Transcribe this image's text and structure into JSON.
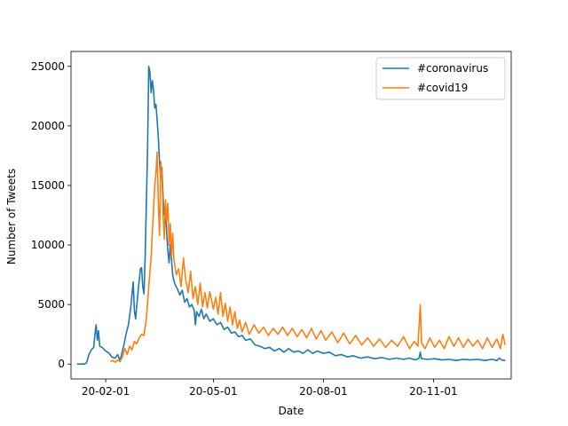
{
  "chart_data": {
    "type": "line",
    "title": "",
    "xlabel": "Date",
    "ylabel": "Number of Tweets",
    "x_tick_labels": [
      "20-02-01",
      "20-05-01",
      "20-08-01",
      "20-11-01"
    ],
    "x_ticks": [
      "2020-02-01",
      "2020-05-01",
      "2020-08-01",
      "2020-11-01"
    ],
    "y_ticks": [
      0,
      5000,
      10000,
      15000,
      20000,
      25000
    ],
    "xlim": [
      "2020-01-03",
      "2021-01-05"
    ],
    "ylim": [
      -1250,
      26250
    ],
    "grid": false,
    "legend_position": "upper right",
    "series": [
      {
        "name": "#coronavirus",
        "color": "#1f77b4",
        "points": [
          [
            "2020-01-08",
            0
          ],
          [
            "2020-01-14",
            0
          ],
          [
            "2020-01-16",
            100
          ],
          [
            "2020-01-18",
            800
          ],
          [
            "2020-01-20",
            1200
          ],
          [
            "2020-01-22",
            1400
          ],
          [
            "2020-01-23",
            2500
          ],
          [
            "2020-01-24",
            3300
          ],
          [
            "2020-01-25",
            2000
          ],
          [
            "2020-01-26",
            2800
          ],
          [
            "2020-01-27",
            1500
          ],
          [
            "2020-01-29",
            1400
          ],
          [
            "2020-02-01",
            1100
          ],
          [
            "2020-02-04",
            900
          ],
          [
            "2020-02-06",
            600
          ],
          [
            "2020-02-09",
            500
          ],
          [
            "2020-02-11",
            800
          ],
          [
            "2020-02-13",
            300
          ],
          [
            "2020-02-16",
            1500
          ],
          [
            "2020-02-18",
            2500
          ],
          [
            "2020-02-20",
            3300
          ],
          [
            "2020-02-22",
            4800
          ],
          [
            "2020-02-24",
            6900
          ],
          [
            "2020-02-25",
            4500
          ],
          [
            "2020-02-26",
            3800
          ],
          [
            "2020-02-28",
            6000
          ],
          [
            "2020-03-01",
            8000
          ],
          [
            "2020-03-02",
            8100
          ],
          [
            "2020-03-03",
            6500
          ],
          [
            "2020-03-04",
            5900
          ],
          [
            "2020-03-05",
            9000
          ],
          [
            "2020-03-06",
            13500
          ],
          [
            "2020-03-07",
            18000
          ],
          [
            "2020-03-08",
            25000
          ],
          [
            "2020-03-09",
            24500
          ],
          [
            "2020-03-10",
            22800
          ],
          [
            "2020-03-11",
            23800
          ],
          [
            "2020-03-12",
            23000
          ],
          [
            "2020-03-13",
            21500
          ],
          [
            "2020-03-14",
            21800
          ],
          [
            "2020-03-15",
            20500
          ],
          [
            "2020-03-16",
            19000
          ],
          [
            "2020-03-17",
            17000
          ],
          [
            "2020-03-18",
            15500
          ],
          [
            "2020-03-19",
            16500
          ],
          [
            "2020-03-20",
            14000
          ],
          [
            "2020-03-21",
            12500
          ],
          [
            "2020-03-22",
            13000
          ],
          [
            "2020-03-23",
            11000
          ],
          [
            "2020-03-24",
            9500
          ],
          [
            "2020-03-25",
            8500
          ],
          [
            "2020-03-26",
            10000
          ],
          [
            "2020-03-27",
            8800
          ],
          [
            "2020-03-28",
            7500
          ],
          [
            "2020-03-29",
            7000
          ],
          [
            "2020-03-30",
            6700
          ],
          [
            "2020-04-01",
            6300
          ],
          [
            "2020-04-03",
            5800
          ],
          [
            "2020-04-05",
            6200
          ],
          [
            "2020-04-07",
            5200
          ],
          [
            "2020-04-09",
            5500
          ],
          [
            "2020-04-11",
            4800
          ],
          [
            "2020-04-13",
            5000
          ],
          [
            "2020-04-15",
            4500
          ],
          [
            "2020-04-16",
            3300
          ],
          [
            "2020-04-17",
            4400
          ],
          [
            "2020-04-19",
            4000
          ],
          [
            "2020-04-21",
            4600
          ],
          [
            "2020-04-23",
            3800
          ],
          [
            "2020-04-25",
            4200
          ],
          [
            "2020-04-28",
            3600
          ],
          [
            "2020-05-01",
            3800
          ],
          [
            "2020-05-04",
            3300
          ],
          [
            "2020-05-07",
            3500
          ],
          [
            "2020-05-10",
            2900
          ],
          [
            "2020-05-13",
            3100
          ],
          [
            "2020-05-16",
            2600
          ],
          [
            "2020-05-19",
            2700
          ],
          [
            "2020-05-22",
            2300
          ],
          [
            "2020-05-25",
            2400
          ],
          [
            "2020-05-28",
            2000
          ],
          [
            "2020-06-01",
            2100
          ],
          [
            "2020-06-05",
            1600
          ],
          [
            "2020-06-09",
            1500
          ],
          [
            "2020-06-13",
            1300
          ],
          [
            "2020-06-17",
            1400
          ],
          [
            "2020-06-21",
            1100
          ],
          [
            "2020-06-25",
            1300
          ],
          [
            "2020-06-29",
            1000
          ],
          [
            "2020-07-03",
            1300
          ],
          [
            "2020-07-07",
            1000
          ],
          [
            "2020-07-11",
            1100
          ],
          [
            "2020-07-15",
            900
          ],
          [
            "2020-07-19",
            1200
          ],
          [
            "2020-07-23",
            900
          ],
          [
            "2020-07-27",
            1100
          ],
          [
            "2020-08-01",
            900
          ],
          [
            "2020-08-06",
            1000
          ],
          [
            "2020-08-11",
            700
          ],
          [
            "2020-08-16",
            800
          ],
          [
            "2020-08-21",
            600
          ],
          [
            "2020-08-26",
            700
          ],
          [
            "2020-09-01",
            500
          ],
          [
            "2020-09-07",
            600
          ],
          [
            "2020-09-13",
            450
          ],
          [
            "2020-09-19",
            550
          ],
          [
            "2020-09-25",
            400
          ],
          [
            "2020-10-01",
            500
          ],
          [
            "2020-10-07",
            400
          ],
          [
            "2020-10-12",
            500
          ],
          [
            "2020-10-17",
            350
          ],
          [
            "2020-10-20",
            500
          ],
          [
            "2020-10-21",
            1000
          ],
          [
            "2020-10-22",
            450
          ],
          [
            "2020-10-27",
            400
          ],
          [
            "2020-11-02",
            450
          ],
          [
            "2020-11-08",
            350
          ],
          [
            "2020-11-14",
            400
          ],
          [
            "2020-11-20",
            300
          ],
          [
            "2020-11-26",
            400
          ],
          [
            "2020-12-02",
            350
          ],
          [
            "2020-12-08",
            400
          ],
          [
            "2020-12-14",
            300
          ],
          [
            "2020-12-20",
            400
          ],
          [
            "2020-12-24",
            300
          ],
          [
            "2020-12-26",
            500
          ],
          [
            "2020-12-28",
            350
          ],
          [
            "2020-12-31",
            300
          ]
        ]
      },
      {
        "name": "#covid19",
        "color": "#ff7f0e",
        "points": [
          [
            "2020-02-05",
            200
          ],
          [
            "2020-02-07",
            300
          ],
          [
            "2020-02-09",
            150
          ],
          [
            "2020-02-11",
            350
          ],
          [
            "2020-02-13",
            200
          ],
          [
            "2020-02-15",
            600
          ],
          [
            "2020-02-17",
            1300
          ],
          [
            "2020-02-19",
            800
          ],
          [
            "2020-02-21",
            1500
          ],
          [
            "2020-02-23",
            1200
          ],
          [
            "2020-02-25",
            1900
          ],
          [
            "2020-02-27",
            1700
          ],
          [
            "2020-02-29",
            2200
          ],
          [
            "2020-03-02",
            2500
          ],
          [
            "2020-03-04",
            2400
          ],
          [
            "2020-03-06",
            3800
          ],
          [
            "2020-03-08",
            6500
          ],
          [
            "2020-03-10",
            9000
          ],
          [
            "2020-03-12",
            13000
          ],
          [
            "2020-03-13",
            15000
          ],
          [
            "2020-03-14",
            16000
          ],
          [
            "2020-03-15",
            17800
          ],
          [
            "2020-03-16",
            13500
          ],
          [
            "2020-03-17",
            10800
          ],
          [
            "2020-03-18",
            17000
          ],
          [
            "2020-03-19",
            16000
          ],
          [
            "2020-03-20",
            12500
          ],
          [
            "2020-03-21",
            10500
          ],
          [
            "2020-03-22",
            13800
          ],
          [
            "2020-03-23",
            12000
          ],
          [
            "2020-03-24",
            13500
          ],
          [
            "2020-03-25",
            10000
          ],
          [
            "2020-03-26",
            11800
          ],
          [
            "2020-03-27",
            9000
          ],
          [
            "2020-03-28",
            11000
          ],
          [
            "2020-03-29",
            8800
          ],
          [
            "2020-03-31",
            7500
          ],
          [
            "2020-04-02",
            8000
          ],
          [
            "2020-04-04",
            6500
          ],
          [
            "2020-04-06",
            8900
          ],
          [
            "2020-04-08",
            7000
          ],
          [
            "2020-04-10",
            6000
          ],
          [
            "2020-04-12",
            7800
          ],
          [
            "2020-04-14",
            5500
          ],
          [
            "2020-04-16",
            6500
          ],
          [
            "2020-04-18",
            5000
          ],
          [
            "2020-04-20",
            6800
          ],
          [
            "2020-04-22",
            4800
          ],
          [
            "2020-04-24",
            6000
          ],
          [
            "2020-04-26",
            4700
          ],
          [
            "2020-04-28",
            6100
          ],
          [
            "2020-05-01",
            4600
          ],
          [
            "2020-05-03",
            5600
          ],
          [
            "2020-05-05",
            4200
          ],
          [
            "2020-05-07",
            6000
          ],
          [
            "2020-05-09",
            4000
          ],
          [
            "2020-05-11",
            5100
          ],
          [
            "2020-05-13",
            3600
          ],
          [
            "2020-05-15",
            4800
          ],
          [
            "2020-05-17",
            3300
          ],
          [
            "2020-05-19",
            4400
          ],
          [
            "2020-05-21",
            3000
          ],
          [
            "2020-05-23",
            3700
          ],
          [
            "2020-05-25",
            2700
          ],
          [
            "2020-05-28",
            3500
          ],
          [
            "2020-05-31",
            2500
          ],
          [
            "2020-06-04",
            3300
          ],
          [
            "2020-06-08",
            2600
          ],
          [
            "2020-06-12",
            3100
          ],
          [
            "2020-06-16",
            2400
          ],
          [
            "2020-06-20",
            3000
          ],
          [
            "2020-06-24",
            2500
          ],
          [
            "2020-06-28",
            3100
          ],
          [
            "2020-07-02",
            2400
          ],
          [
            "2020-07-06",
            3000
          ],
          [
            "2020-07-10",
            2300
          ],
          [
            "2020-07-14",
            2900
          ],
          [
            "2020-07-18",
            2200
          ],
          [
            "2020-07-22",
            3000
          ],
          [
            "2020-07-26",
            2100
          ],
          [
            "2020-07-30",
            2800
          ],
          [
            "2020-08-03",
            2000
          ],
          [
            "2020-08-08",
            2700
          ],
          [
            "2020-08-13",
            1800
          ],
          [
            "2020-08-18",
            2600
          ],
          [
            "2020-08-23",
            1700
          ],
          [
            "2020-08-28",
            2400
          ],
          [
            "2020-09-02",
            1600
          ],
          [
            "2020-09-07",
            2200
          ],
          [
            "2020-09-12",
            1500
          ],
          [
            "2020-09-17",
            2100
          ],
          [
            "2020-09-22",
            1400
          ],
          [
            "2020-09-27",
            2000
          ],
          [
            "2020-10-02",
            1500
          ],
          [
            "2020-10-07",
            2300
          ],
          [
            "2020-10-12",
            1300
          ],
          [
            "2020-10-16",
            1900
          ],
          [
            "2020-10-19",
            1500
          ],
          [
            "2020-10-21",
            5000
          ],
          [
            "2020-10-22",
            1800
          ],
          [
            "2020-10-25",
            1300
          ],
          [
            "2020-10-29",
            2200
          ],
          [
            "2020-11-02",
            1400
          ],
          [
            "2020-11-06",
            2000
          ],
          [
            "2020-11-10",
            1300
          ],
          [
            "2020-11-14",
            2300
          ],
          [
            "2020-11-18",
            1500
          ],
          [
            "2020-11-22",
            2200
          ],
          [
            "2020-11-26",
            1400
          ],
          [
            "2020-11-30",
            2100
          ],
          [
            "2020-12-04",
            1500
          ],
          [
            "2020-12-08",
            2000
          ],
          [
            "2020-12-12",
            1300
          ],
          [
            "2020-12-16",
            2200
          ],
          [
            "2020-12-20",
            1400
          ],
          [
            "2020-12-24",
            2100
          ],
          [
            "2020-12-27",
            1300
          ],
          [
            "2020-12-29",
            2500
          ],
          [
            "2020-12-31",
            1600
          ]
        ]
      }
    ]
  }
}
